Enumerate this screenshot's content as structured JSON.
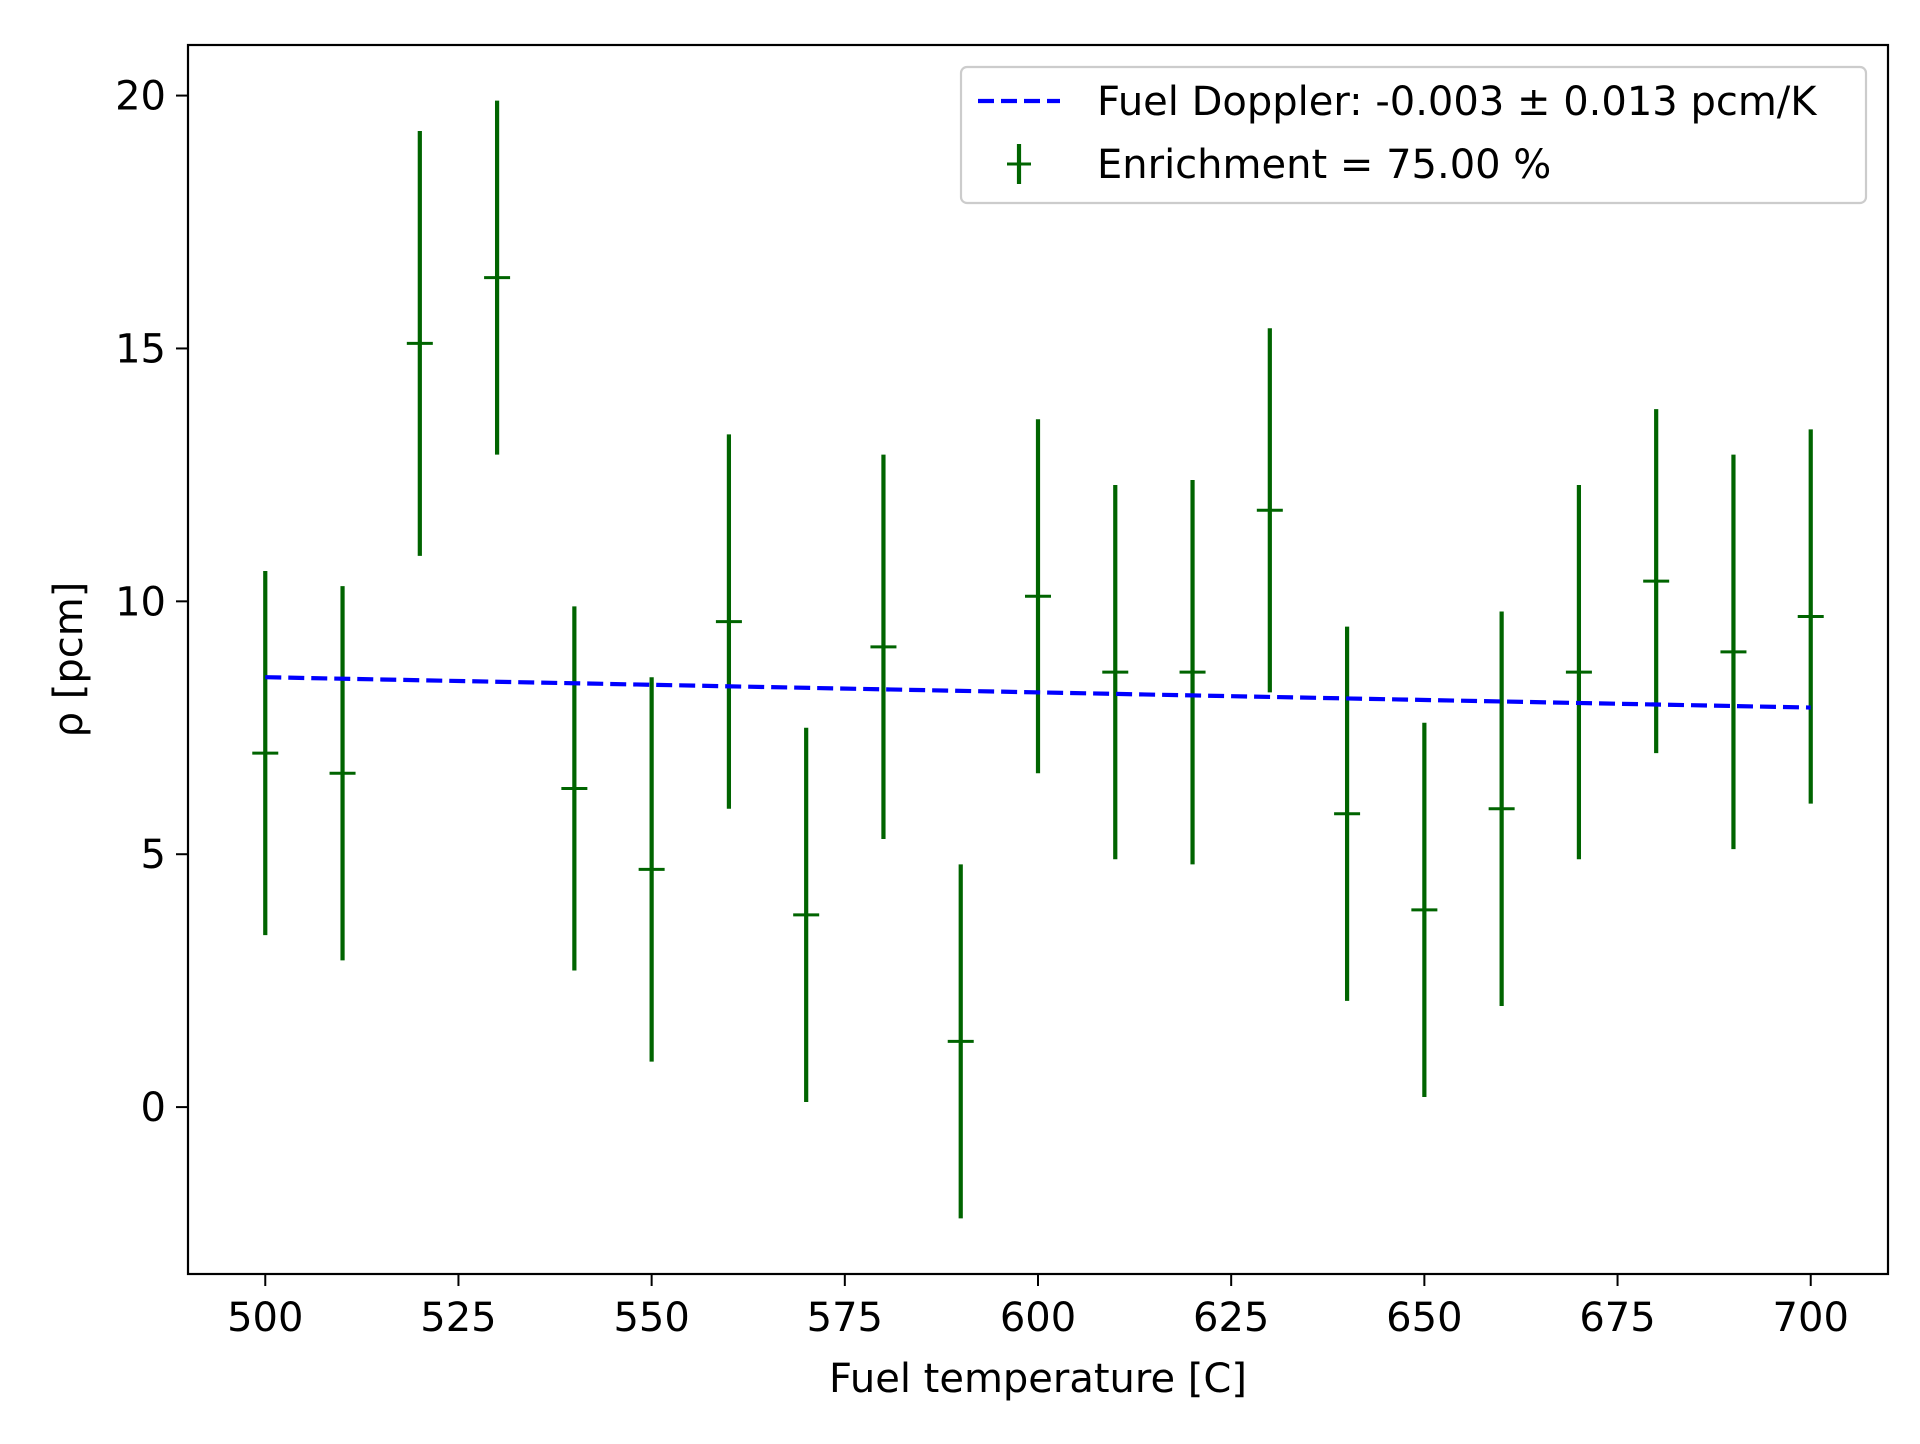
{
  "chart_data": {
    "type": "scatter",
    "title": "",
    "xlabel": "Fuel temperature [C]",
    "ylabel": "ρ [pcm]",
    "xlim": [
      490,
      710
    ],
    "ylim": [
      -3.3,
      21
    ],
    "xticks": [
      500,
      525,
      550,
      575,
      600,
      625,
      650,
      675,
      700
    ],
    "xtick_labels": [
      "500",
      "525",
      "550",
      "575",
      "600",
      "625",
      "650",
      "675",
      "700"
    ],
    "yticks": [
      0,
      5,
      10,
      15,
      20
    ],
    "ytick_labels": [
      "0",
      "5",
      "10",
      "15",
      "20"
    ],
    "grid": false,
    "legend_position": "top-right",
    "series": [
      {
        "name": "Fuel Doppler: -0.003 ± 0.013 pcm/K",
        "kind": "line",
        "style": "dashed",
        "color": "#0000ff",
        "x": [
          500,
          700
        ],
        "y": [
          8.5,
          7.9
        ]
      },
      {
        "name": "Enrichment = 75.00 %",
        "kind": "errorbar",
        "color": "#006400",
        "x": [
          500,
          510,
          520,
          530,
          540,
          550,
          560,
          570,
          580,
          590,
          600,
          610,
          620,
          630,
          640,
          650,
          660,
          670,
          680,
          690,
          700
        ],
        "y": [
          7.0,
          6.6,
          15.1,
          16.4,
          6.3,
          4.7,
          9.6,
          3.8,
          9.1,
          1.3,
          10.1,
          8.6,
          8.6,
          11.8,
          5.8,
          3.9,
          5.9,
          8.6,
          10.4,
          9.0,
          9.7
        ],
        "yerr": [
          3.6,
          3.7,
          4.2,
          3.5,
          3.6,
          3.8,
          3.7,
          3.7,
          3.8,
          3.5,
          3.5,
          3.7,
          3.8,
          3.6,
          3.7,
          3.7,
          3.9,
          3.7,
          3.4,
          3.9,
          3.7
        ]
      }
    ]
  }
}
